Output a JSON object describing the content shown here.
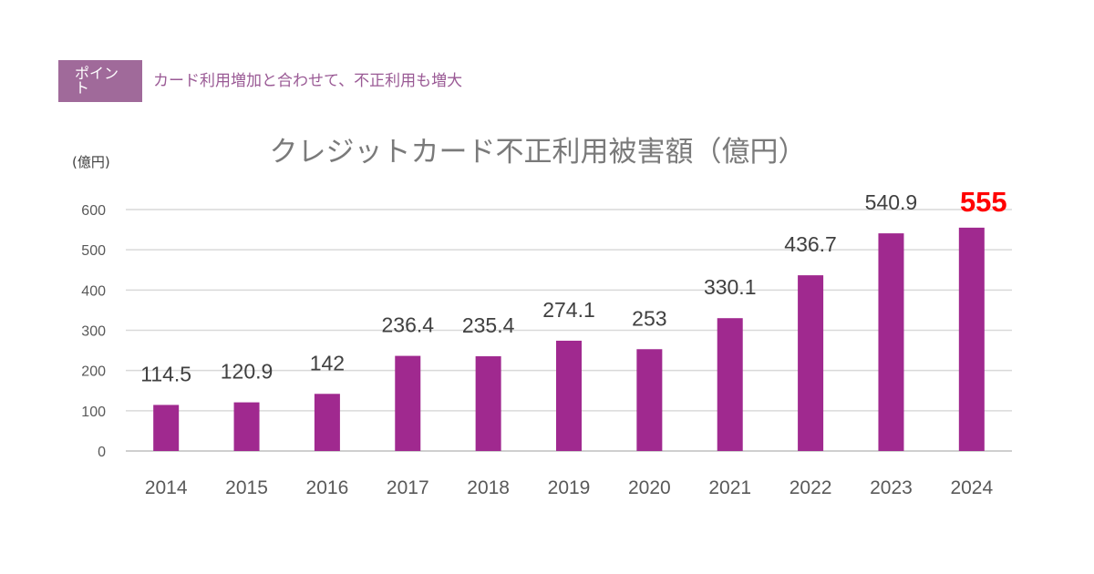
{
  "point": {
    "badge_label": "ポイント",
    "text": "カード利用増加と合わせて、不正利用も増大"
  },
  "colors": {
    "bar": "#a0298f",
    "highlight": "#ff0000",
    "grid": "#d9d9d9",
    "text": "#595959",
    "label": "#404040"
  },
  "chart_data": {
    "type": "bar",
    "title": "クレジットカード不正利用被害額（億円）",
    "ylabel": "(億円)",
    "xlabel": "",
    "categories": [
      "2014",
      "2015",
      "2016",
      "2017",
      "2018",
      "2019",
      "2020",
      "2021",
      "2022",
      "2023",
      "2024"
    ],
    "values": [
      114.5,
      120.9,
      142,
      236.4,
      235.4,
      274.1,
      253,
      330.1,
      436.7,
      540.9,
      555
    ],
    "value_labels": [
      "114.5",
      "120.9",
      "142",
      "236.4",
      "235.4",
      "274.1",
      "253",
      "330.1",
      "436.7",
      "540.9",
      "555"
    ],
    "highlight_index": 10,
    "ylim": [
      0,
      600
    ],
    "yticks": [
      0,
      100,
      200,
      300,
      400,
      500,
      600
    ],
    "grid": true,
    "legend": "none"
  }
}
